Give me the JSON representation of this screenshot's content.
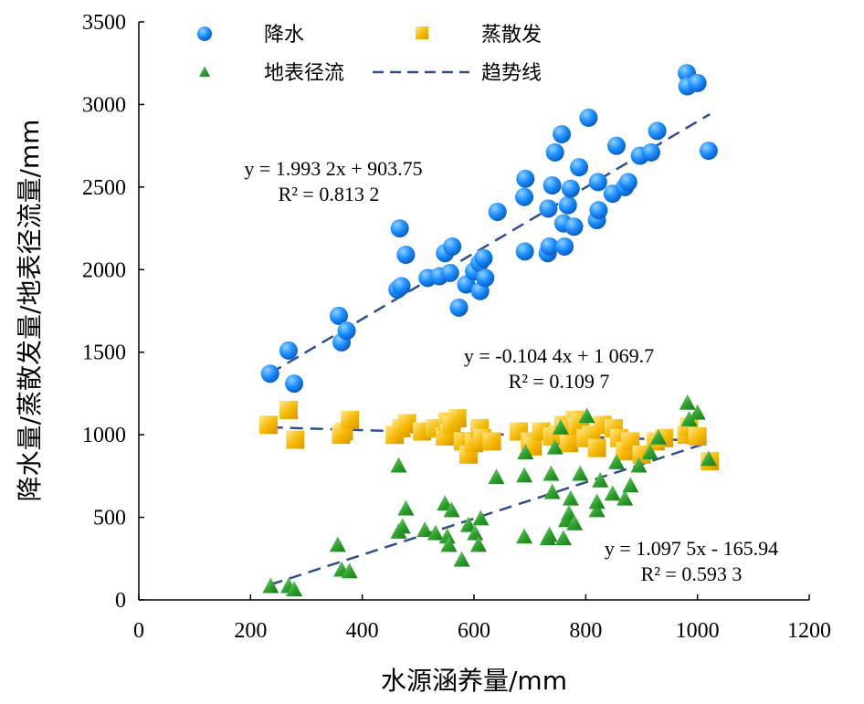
{
  "chart_data": {
    "type": "scatter",
    "xlabel": "水源涵养量/mm",
    "ylabel": "降水量/蒸散发量/地表径流量/mm",
    "xlim": [
      0,
      1200
    ],
    "ylim": [
      0,
      3500
    ],
    "xticks": [
      "0",
      "200",
      "400",
      "600",
      "800",
      "1000",
      "1200"
    ],
    "yticks": [
      "0",
      "500",
      "1000",
      "1500",
      "2000",
      "2500",
      "3000",
      "3500"
    ],
    "grid": false,
    "legend_position": "top",
    "legend": {
      "precip": "降水",
      "evap": "蒸散发",
      "runoff": "地表径流",
      "trend": "趋势线"
    },
    "colors": {
      "precip": "#1e90ff",
      "evap": "#f5b800",
      "runoff": "#2ca02c",
      "trend": "#2f4f8f"
    },
    "series": [
      {
        "key": "precip",
        "name": "降水",
        "marker": "circle",
        "points": [
          [
            235,
            1370
          ],
          [
            268,
            1510
          ],
          [
            278,
            1310
          ],
          [
            358,
            1720
          ],
          [
            363,
            1560
          ],
          [
            372,
            1630
          ],
          [
            463,
            1880
          ],
          [
            470,
            1900
          ],
          [
            467,
            2250
          ],
          [
            478,
            2090
          ],
          [
            517,
            1950
          ],
          [
            538,
            1960
          ],
          [
            548,
            2100
          ],
          [
            557,
            1980
          ],
          [
            561,
            2140
          ],
          [
            573,
            1770
          ],
          [
            586,
            1910
          ],
          [
            600,
            1990
          ],
          [
            610,
            2040
          ],
          [
            611,
            1870
          ],
          [
            617,
            2070
          ],
          [
            620,
            1950
          ],
          [
            642,
            2350
          ],
          [
            690,
            2440
          ],
          [
            692,
            2550
          ],
          [
            691,
            2110
          ],
          [
            732,
            2100
          ],
          [
            735,
            2140
          ],
          [
            733,
            2370
          ],
          [
            740,
            2510
          ],
          [
            745,
            2710
          ],
          [
            757,
            2820
          ],
          [
            760,
            2280
          ],
          [
            762,
            2140
          ],
          [
            768,
            2390
          ],
          [
            773,
            2490
          ],
          [
            779,
            2260
          ],
          [
            788,
            2620
          ],
          [
            805,
            2920
          ],
          [
            820,
            2300
          ],
          [
            822,
            2530
          ],
          [
            823,
            2360
          ],
          [
            848,
            2460
          ],
          [
            855,
            2750
          ],
          [
            870,
            2500
          ],
          [
            876,
            2530
          ],
          [
            897,
            2690
          ],
          [
            917,
            2710
          ],
          [
            928,
            2840
          ],
          [
            981,
            3190
          ],
          [
            982,
            3110
          ],
          [
            1000,
            3130
          ],
          [
            1020,
            2720
          ]
        ]
      },
      {
        "key": "evap",
        "name": "蒸散发",
        "marker": "square",
        "points": [
          [
            232,
            1060
          ],
          [
            268,
            1150
          ],
          [
            280,
            970
          ],
          [
            362,
            1000
          ],
          [
            367,
            1020
          ],
          [
            378,
            1090
          ],
          [
            458,
            1000
          ],
          [
            470,
            1040
          ],
          [
            480,
            1070
          ],
          [
            507,
            1020
          ],
          [
            530,
            1040
          ],
          [
            548,
            990
          ],
          [
            552,
            1080
          ],
          [
            556,
            1010
          ],
          [
            560,
            1060
          ],
          [
            570,
            1100
          ],
          [
            580,
            960
          ],
          [
            590,
            880
          ],
          [
            600,
            950
          ],
          [
            610,
            1040
          ],
          [
            615,
            980
          ],
          [
            632,
            960
          ],
          [
            680,
            1020
          ],
          [
            700,
            960
          ],
          [
            705,
            930
          ],
          [
            720,
            1020
          ],
          [
            740,
            990
          ],
          [
            750,
            1000
          ],
          [
            760,
            1060
          ],
          [
            765,
            1030
          ],
          [
            770,
            950
          ],
          [
            780,
            1090
          ],
          [
            785,
            1050
          ],
          [
            790,
            1080
          ],
          [
            800,
            980
          ],
          [
            810,
            1000
          ],
          [
            820,
            920
          ],
          [
            830,
            1060
          ],
          [
            850,
            1040
          ],
          [
            860,
            980
          ],
          [
            870,
            900
          ],
          [
            880,
            960
          ],
          [
            900,
            880
          ],
          [
            925,
            960
          ],
          [
            940,
            980
          ],
          [
            980,
            1000
          ],
          [
            985,
            1050
          ],
          [
            1000,
            990
          ],
          [
            1022,
            840
          ]
        ]
      },
      {
        "key": "runoff",
        "name": "地表径流",
        "marker": "triangle",
        "points": [
          [
            236,
            80
          ],
          [
            268,
            80
          ],
          [
            278,
            60
          ],
          [
            356,
            330
          ],
          [
            363,
            180
          ],
          [
            377,
            170
          ],
          [
            465,
            810
          ],
          [
            465,
            410
          ],
          [
            472,
            440
          ],
          [
            478,
            550
          ],
          [
            512,
            420
          ],
          [
            531,
            400
          ],
          [
            548,
            580
          ],
          [
            552,
            380
          ],
          [
            555,
            330
          ],
          [
            560,
            540
          ],
          [
            578,
            240
          ],
          [
            590,
            450
          ],
          [
            602,
            400
          ],
          [
            608,
            330
          ],
          [
            612,
            490
          ],
          [
            640,
            740
          ],
          [
            690,
            750
          ],
          [
            692,
            890
          ],
          [
            690,
            380
          ],
          [
            732,
            370
          ],
          [
            735,
            390
          ],
          [
            738,
            760
          ],
          [
            740,
            650
          ],
          [
            745,
            920
          ],
          [
            755,
            1040
          ],
          [
            760,
            370
          ],
          [
            765,
            480
          ],
          [
            770,
            520
          ],
          [
            773,
            610
          ],
          [
            780,
            460
          ],
          [
            790,
            760
          ],
          [
            802,
            1110
          ],
          [
            820,
            540
          ],
          [
            820,
            590
          ],
          [
            826,
            720
          ],
          [
            848,
            640
          ],
          [
            855,
            830
          ],
          [
            870,
            610
          ],
          [
            880,
            690
          ],
          [
            895,
            810
          ],
          [
            915,
            890
          ],
          [
            930,
            980
          ],
          [
            982,
            1190
          ],
          [
            985,
            1090
          ],
          [
            1000,
            1130
          ],
          [
            1020,
            850
          ]
        ]
      }
    ],
    "trendlines": [
      {
        "series": "precip",
        "slope": 1.9932,
        "intercept": 903.75,
        "x_range": [
          235,
          1022
        ],
        "equation": "y = 1.993 2x + 903.75",
        "r2": "R² = 0.813 2"
      },
      {
        "series": "evap",
        "slope": -0.1044,
        "intercept": 1069.7,
        "x_range": [
          235,
          1022
        ],
        "equation": "y = -0.104 4x + 1 069.7",
        "r2": "R² = 0.109 7"
      },
      {
        "series": "runoff",
        "slope": 1.0975,
        "intercept": -165.94,
        "x_range": [
          235,
          1022
        ],
        "equation": "y = 1.097 5x - 165.94",
        "r2": "R² = 0.593 3"
      }
    ]
  }
}
